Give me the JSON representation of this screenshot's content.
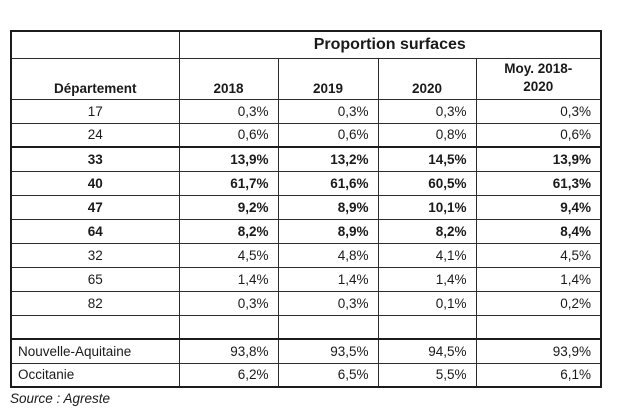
{
  "colors": {
    "background": "#ffffff",
    "text": "#1a1a1a",
    "border": "#2b2b2b"
  },
  "table": {
    "title": "Proportion surfaces",
    "columns": [
      "Département",
      "2018",
      "2019",
      "2020",
      "Moy. 2018-2020"
    ],
    "dept_rows": [
      {
        "dept": "17",
        "values": [
          "0,3%",
          "0,3%",
          "0,3%",
          "0,3%"
        ],
        "bold": false,
        "thick_top": false
      },
      {
        "dept": "24",
        "values": [
          "0,6%",
          "0,6%",
          "0,8%",
          "0,6%"
        ],
        "bold": false,
        "thick_top": false
      },
      {
        "dept": "33",
        "values": [
          "13,9%",
          "13,2%",
          "14,5%",
          "13,9%"
        ],
        "bold": true,
        "thick_top": true
      },
      {
        "dept": "40",
        "values": [
          "61,7%",
          "61,6%",
          "60,5%",
          "61,3%"
        ],
        "bold": true,
        "thick_top": false
      },
      {
        "dept": "47",
        "values": [
          "9,2%",
          "8,9%",
          "10,1%",
          "9,4%"
        ],
        "bold": true,
        "thick_top": false
      },
      {
        "dept": "64",
        "values": [
          "8,2%",
          "8,9%",
          "8,2%",
          "8,4%"
        ],
        "bold": true,
        "thick_top": false
      },
      {
        "dept": "32",
        "values": [
          "4,5%",
          "4,8%",
          "4,1%",
          "4,5%"
        ],
        "bold": false,
        "thick_top": false
      },
      {
        "dept": "65",
        "values": [
          "1,4%",
          "1,4%",
          "1,4%",
          "1,4%"
        ],
        "bold": false,
        "thick_top": false
      },
      {
        "dept": "82",
        "values": [
          "0,3%",
          "0,3%",
          "0,1%",
          "0,2%"
        ],
        "bold": false,
        "thick_top": false
      }
    ],
    "region_rows": [
      {
        "name": "Nouvelle-Aquitaine",
        "values": [
          "93,8%",
          "93,5%",
          "94,5%",
          "93,9%"
        ],
        "thick_top": true
      },
      {
        "name": "Occitanie",
        "values": [
          "6,2%",
          "6,5%",
          "5,5%",
          "6,1%"
        ],
        "thick_top": false
      }
    ]
  },
  "source": "Source : Agreste"
}
